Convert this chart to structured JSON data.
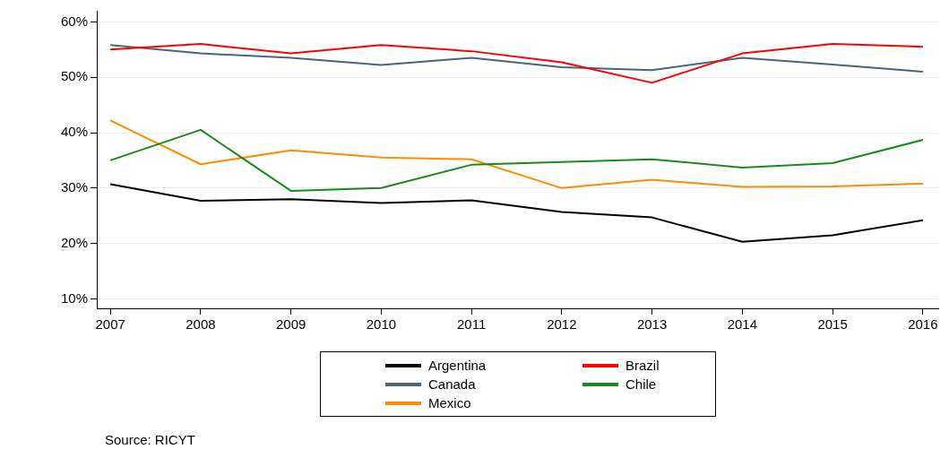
{
  "chart_data": {
    "type": "line",
    "x": [
      2007,
      2008,
      2009,
      2010,
      2011,
      2012,
      2013,
      2014,
      2015,
      2016
    ],
    "series": [
      {
        "name": "Argentina",
        "color": "#000000",
        "values": [
          30.7,
          27.7,
          28.0,
          27.3,
          27.8,
          25.7,
          24.7,
          20.3,
          21.5,
          24.2
        ]
      },
      {
        "name": "Brazil",
        "color": "#ff0000",
        "values": [
          55.0,
          56.0,
          54.3,
          55.8,
          54.7,
          52.7,
          49.0,
          54.3,
          56.0,
          55.5
        ]
      },
      {
        "name": "Canada",
        "color": "#4a6478",
        "values": [
          55.8,
          54.3,
          53.5,
          52.2,
          53.5,
          51.8,
          51.3,
          53.5,
          52.3,
          51.0
        ]
      },
      {
        "name": "Chile",
        "color": "#1a8a1a",
        "values": [
          35.0,
          40.5,
          29.5,
          30.0,
          34.2,
          34.7,
          35.2,
          33.7,
          34.5,
          38.7
        ]
      },
      {
        "name": "Mexico",
        "color": "#ff8c00",
        "values": [
          42.2,
          34.3,
          36.8,
          35.5,
          35.2,
          30.0,
          31.5,
          30.2,
          30.3,
          30.8
        ]
      }
    ],
    "xlim": [
      2006.85,
      2016.17
    ],
    "xticks": [
      2007,
      2008,
      2009,
      2010,
      2011,
      2012,
      2013,
      2014,
      2015,
      2016
    ],
    "ylim": [
      8.3,
      62
    ],
    "yticks": [
      {
        "value": 10,
        "label": "10%"
      },
      {
        "value": 20,
        "label": "20%"
      },
      {
        "value": 30,
        "label": "30%"
      },
      {
        "value": 40,
        "label": "40%"
      },
      {
        "value": 50,
        "label": "50%"
      },
      {
        "value": 60,
        "label": "60%"
      }
    ],
    "grid": "y",
    "legend": "bottom",
    "marker": "none",
    "line_style": "solid",
    "annotations": [
      "Source: RICYT"
    ]
  }
}
